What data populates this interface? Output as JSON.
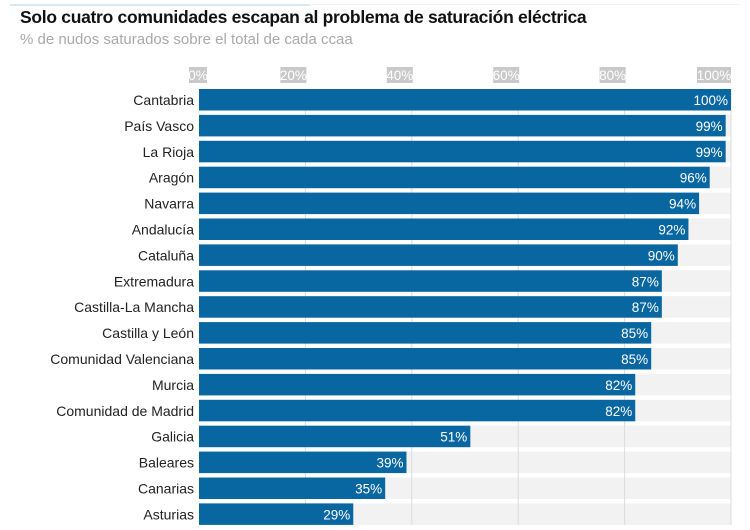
{
  "header": {
    "title": "Solo cuatro comunidades escapan al problema de saturación eléctrica",
    "subtitle": "% de nudos saturados sobre el total de cada ccaa"
  },
  "colors": {
    "bar": "#0866a1",
    "track": "#f2f2f2",
    "tick_box": "#c9c9c9",
    "gridline": "#dcdcdc"
  },
  "chart_data": {
    "type": "bar",
    "orientation": "horizontal",
    "title": "Solo cuatro comunidades escapan al problema de saturación eléctrica",
    "subtitle": "% de nudos saturados sobre el total de cada ccaa",
    "xlabel": "",
    "ylabel": "",
    "xlim": [
      0,
      100
    ],
    "x_ticks": [
      0,
      20,
      40,
      60,
      80,
      100
    ],
    "x_tick_labels": [
      "0%",
      "20%",
      "40%",
      "60%",
      "80%",
      "100%"
    ],
    "axis_position": "top",
    "grid": true,
    "legend": "none",
    "categories": [
      "Cantabria",
      "País Vasco",
      "La Rioja",
      "Aragón",
      "Navarra",
      "Andalucía",
      "Cataluña",
      "Extremadura",
      "Castilla-La Mancha",
      "Castilla y León",
      "Comunidad Valenciana",
      "Murcia",
      "Comunidad de Madrid",
      "Galicia",
      "Baleares",
      "Canarias",
      "Asturias"
    ],
    "values": [
      100,
      99,
      99,
      96,
      94,
      92,
      90,
      87,
      87,
      85,
      85,
      82,
      82,
      51,
      39,
      35,
      29
    ],
    "value_labels": [
      "100%",
      "99%",
      "99%",
      "96%",
      "94%",
      "92%",
      "90%",
      "87%",
      "87%",
      "85%",
      "85%",
      "82%",
      "82%",
      "51%",
      "39%",
      "35%",
      "29%"
    ]
  }
}
